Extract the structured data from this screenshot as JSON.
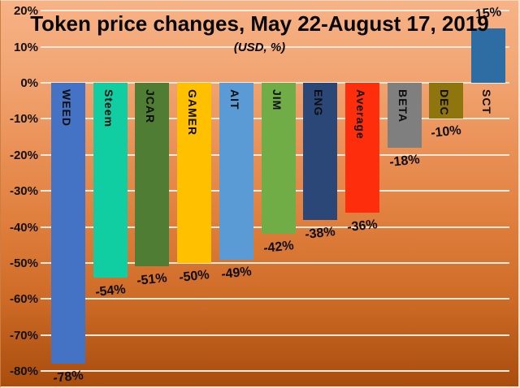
{
  "chart_data": {
    "type": "bar",
    "title": "Token price changes, May 22-August 17, 2019",
    "subtitle": "(USD, %)",
    "categories": [
      "WEED",
      "Steem",
      "JCAR",
      "GAMER",
      "AIT",
      "JIM",
      "ENG",
      "Average",
      "BETA",
      "DEC",
      "SCT"
    ],
    "values": [
      -78,
      -54,
      -51,
      -50,
      -49,
      -42,
      -38,
      -36,
      -18,
      -10,
      15
    ],
    "value_labels": [
      "-78%",
      "-54%",
      "-51%",
      "-50%",
      "-49%",
      "-42%",
      "-38%",
      "-36%",
      "-18%",
      "-10%",
      "15%"
    ],
    "bar_colors": [
      "#4472c4",
      "#10cda2",
      "#4f7d33",
      "#ffc000",
      "#5b9bd5",
      "#70ad47",
      "#2a4778",
      "#fe2e0c",
      "#7f7f7f",
      "#8f750e",
      "#2e6da4"
    ],
    "ylabel": "",
    "xlabel": "",
    "ylim": [
      -80,
      20
    ],
    "ytick_step": 10,
    "ytick_labels": [
      "20%",
      "10%",
      "0%",
      "-10%",
      "-20%",
      "-30%",
      "-40%",
      "-50%",
      "-60%",
      "-70%",
      "-80%"
    ],
    "ytick_values": [
      20,
      10,
      0,
      -10,
      -20,
      -30,
      -40,
      -50,
      -60,
      -70,
      -80
    ],
    "grid": true,
    "legend": "none",
    "gridline_color": "#f2e9df",
    "text_color": "#0d0d0d",
    "background_top": "#f7b286",
    "background_bottom": "#a94d0d"
  }
}
